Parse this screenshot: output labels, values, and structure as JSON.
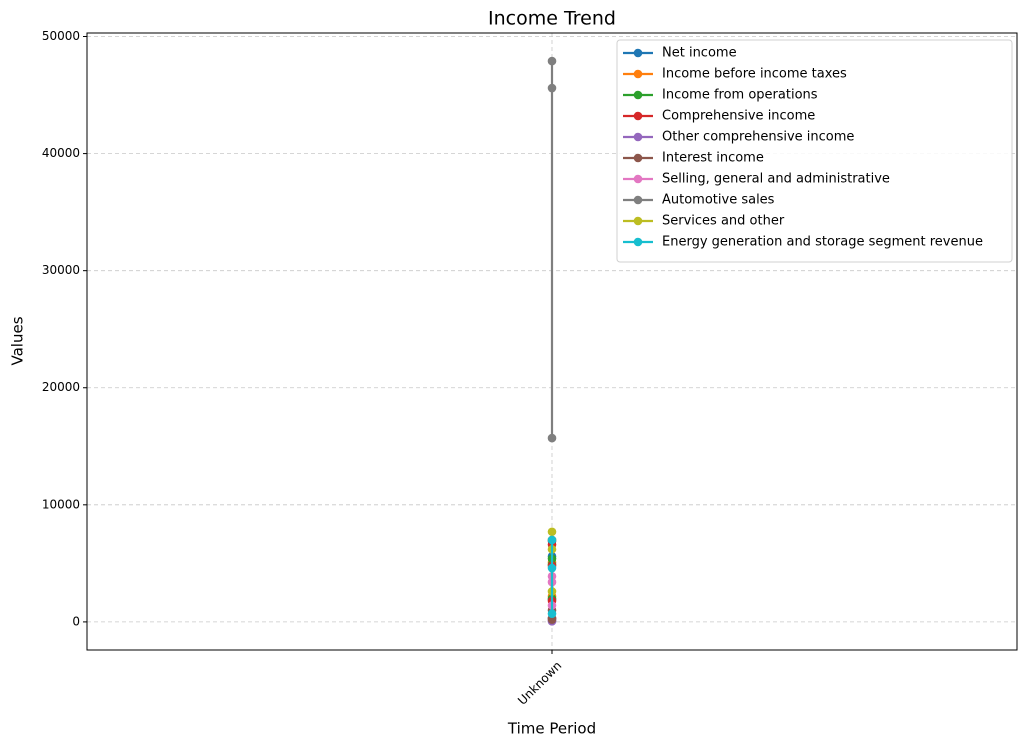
{
  "chart_data": {
    "type": "line",
    "title": "Income Trend",
    "x_label": "Time Period",
    "y_label": "Values",
    "x": [
      "Unknown",
      "Unknown",
      "Unknown"
    ],
    "series": [
      {
        "name": "Net income",
        "color": "#1f77b4",
        "values": [
          6900,
          5600,
          1900
        ]
      },
      {
        "name": "Income before income taxes",
        "color": "#ff7f0e",
        "values": [
          7000,
          5100,
          2200
        ]
      },
      {
        "name": "Income from operations",
        "color": "#2ca02c",
        "values": [
          5400,
          4900,
          2000
        ]
      },
      {
        "name": "Comprehensive income",
        "color": "#d62728",
        "values": [
          6600,
          4800,
          1800
        ]
      },
      {
        "name": "Other comprehensive income",
        "color": "#9467bd",
        "values": [
          300,
          100,
          50
        ]
      },
      {
        "name": "Interest income",
        "color": "#8c564b",
        "values": [
          1000,
          300,
          200
        ]
      },
      {
        "name": "Selling, general and administrative",
        "color": "#e377c2",
        "values": [
          3900,
          3400,
          1400
        ]
      },
      {
        "name": "Automotive sales",
        "color": "#7f7f7f",
        "values": [
          47900,
          45600,
          15700
        ]
      },
      {
        "name": "Services and other",
        "color": "#bcbd22",
        "values": [
          7700,
          6200,
          2600
        ]
      },
      {
        "name": "Energy generation and storage segment revenue",
        "color": "#17becf",
        "values": [
          7000,
          4600,
          700
        ]
      }
    ],
    "ylim": [
      -2400,
      50300
    ],
    "yticks": [
      0,
      10000,
      20000,
      30000,
      40000,
      50000
    ],
    "grid": true,
    "legend": "upper right"
  }
}
